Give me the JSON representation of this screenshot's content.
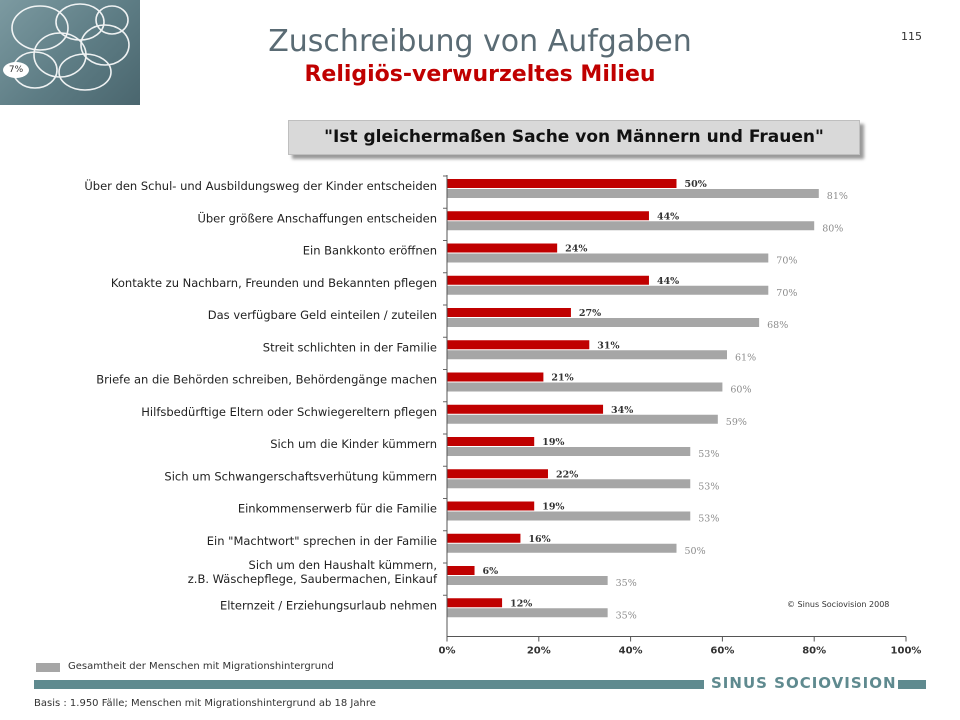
{
  "page_number": "115",
  "logo": {
    "percent_label": "7%",
    "icon": "sinus-milieu-map-icon"
  },
  "header": {
    "title": "Zuschreibung von Aufgaben",
    "subtitle": "Religiös-verwurzeltes Milieu"
  },
  "question": "\"Ist gleichermaßen Sache von Männern und Frauen\"",
  "copyright": "© Sinus Sociovision 2008",
  "legend": {
    "label": "Gesamtheit der Menschen mit Migrationshintergrund"
  },
  "footer": {
    "brand": "SINUS SOCIOVISION",
    "basis": "Basis : 1.950 Fälle; Menschen mit Migrationshintergrund ab 18 Jahre"
  },
  "colors": {
    "milieu": "#c00000",
    "total": "#a6a6a6",
    "accent": "#5f8a8f"
  },
  "chart_data": {
    "type": "bar",
    "orientation": "horizontal",
    "categories": [
      "Über den Schul- und Ausbildungsweg der Kinder entscheiden",
      "Über größere Anschaffungen entscheiden",
      "Ein Bankkonto eröffnen",
      "Kontakte zu Nachbarn, Freunden und Bekannten pflegen",
      "Das verfügbare Geld einteilen / zuteilen",
      "Streit schlichten in der Familie",
      "Briefe an die Behörden schreiben, Behördengänge machen",
      "Hilfsbedürftige Eltern oder Schwiegereltern pflegen",
      "Sich um die Kinder kümmern",
      "Sich um Schwangerschaftsverhütung kümmern",
      "Einkommenserwerb für die Familie",
      "Ein \"Machtwort\" sprechen in der Familie",
      "Sich um den Haushalt kümmern,\nz.B. Wäschepflege, Saubermachen, Einkauf",
      "Elternzeit / Erziehungsurlaub nehmen"
    ],
    "series": [
      {
        "values": [
          50,
          44,
          24,
          44,
          27,
          31,
          21,
          34,
          19,
          22,
          19,
          16,
          6,
          12
        ]
      },
      {
        "name": "Gesamtheit der Menschen mit Migrationshintergrund",
        "values": [
          81,
          80,
          70,
          70,
          68,
          61,
          60,
          59,
          53,
          53,
          53,
          50,
          35,
          35
        ]
      }
    ],
    "xlim": [
      0,
      100
    ],
    "xticks": [
      "0%",
      "20%",
      "40%",
      "60%",
      "80%",
      "100%"
    ],
    "value_suffix": "%",
    "grid": false
  }
}
